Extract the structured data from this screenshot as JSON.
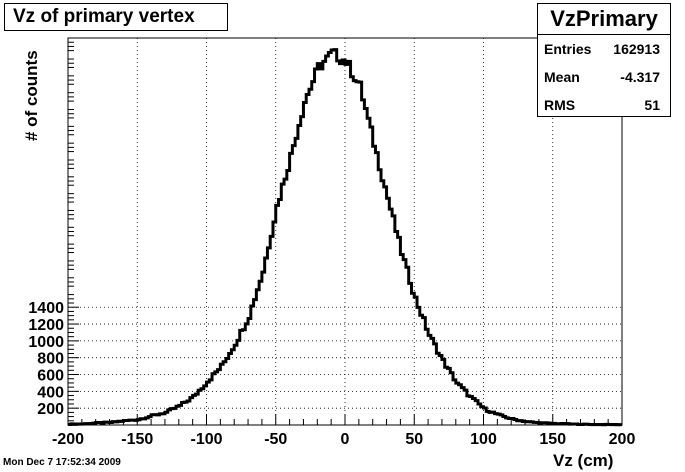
{
  "chart_data": {
    "type": "histogram",
    "title": "Vz of primary vertex",
    "xlabel": "Vz (cm)",
    "ylabel": "# of counts",
    "xlim": [
      -200,
      200
    ],
    "ylim": [
      0,
      4600
    ],
    "x_ticks": [
      -200,
      -150,
      -100,
      -50,
      0,
      50,
      100,
      150,
      200
    ],
    "y_ticks": [
      200,
      400,
      600,
      800,
      1000,
      1200,
      1400
    ],
    "y_tick_labels": [
      "200",
      "400",
      "600",
      "800",
      "1000",
      "1200",
      "1400"
    ],
    "grid": true,
    "bin_edges_start": -200,
    "bin_width": 2,
    "x": [
      -199,
      -189,
      -179,
      -169,
      -159,
      -149,
      -139,
      -129,
      -119,
      -109,
      -99,
      -89,
      -79,
      -69,
      -59,
      -49,
      -39,
      -29,
      -19,
      -9,
      1,
      11,
      21,
      31,
      41,
      51,
      61,
      71,
      81,
      91,
      101,
      111,
      121,
      131,
      141,
      151,
      161,
      171,
      181,
      191
    ],
    "y": [
      10,
      12,
      25,
      30,
      50,
      65,
      110,
      150,
      230,
      340,
      520,
      700,
      970,
      1300,
      1830,
      2600,
      3200,
      3850,
      4250,
      4420,
      4320,
      4020,
      3350,
      2700,
      2050,
      1500,
      1070,
      760,
      500,
      330,
      190,
      120,
      70,
      40,
      25,
      18,
      12,
      8,
      6,
      5
    ],
    "stats": {
      "name": "VzPrimary",
      "entries_label": "Entries",
      "entries": "162913",
      "mean_label": "Mean",
      "mean": "-4.317",
      "rms_label": "RMS",
      "rms": "51"
    }
  },
  "timestamp": "Mon Dec  7 17:52:34 2009"
}
